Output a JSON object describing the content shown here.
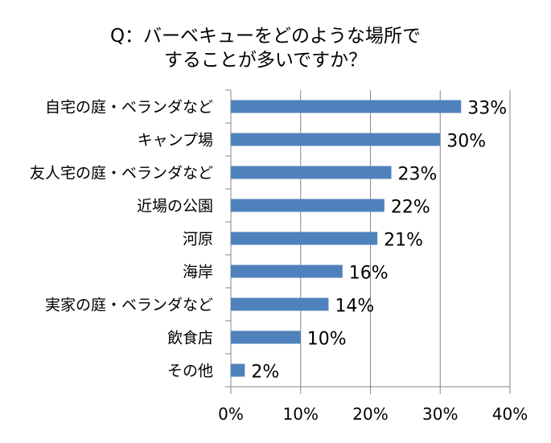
{
  "chart_data": {
    "type": "bar",
    "orientation": "horizontal",
    "title": [
      "Q：バーベキューをどのような場所で",
      "することが多いですか？"
    ],
    "categories": [
      "自宅の庭・ベランダなど",
      "キャンプ場",
      "友人宅の庭・ベランダなど",
      "近場の公園",
      "河原",
      "海岸",
      "実家の庭・ベランダなど",
      "飲食店",
      "その他"
    ],
    "values": [
      33,
      30,
      23,
      22,
      21,
      16,
      14,
      10,
      2
    ],
    "data_labels": [
      "33%",
      "30%",
      "23%",
      "22%",
      "21%",
      "16%",
      "14%",
      "10%",
      "2%"
    ],
    "xlim": [
      0,
      40
    ],
    "x_ticks": [
      0,
      10,
      20,
      30,
      40
    ],
    "x_tick_labels": [
      "0%",
      "10%",
      "20%",
      "30%",
      "40%"
    ],
    "xlabel": "",
    "ylabel": "",
    "grid": "vertical",
    "legend": "none",
    "bar_color": "#4F81BD"
  }
}
